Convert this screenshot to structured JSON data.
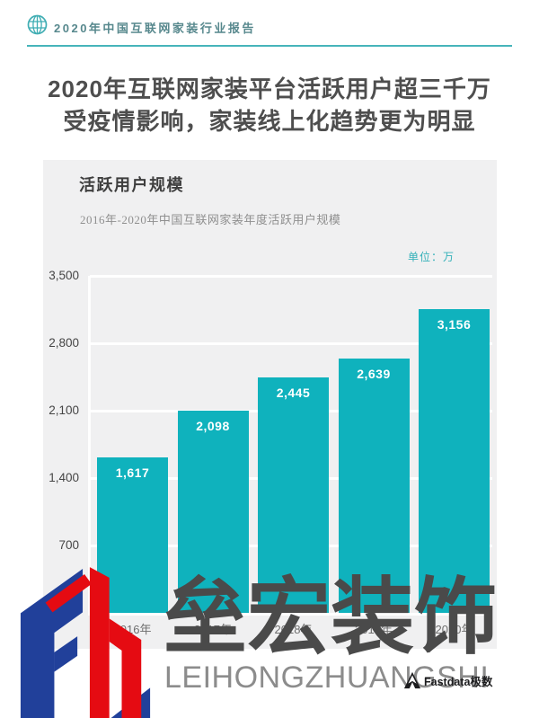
{
  "header": {
    "title": "2020年中国互联网家装行业报告"
  },
  "banner": {
    "line1": "2020年互联网家装平台活跃用户超三千万",
    "line2": "受疫情影响，家装线上化趋势更为明显"
  },
  "chart_card": {
    "title": "活跃用户规模",
    "subtitle": "2016年-2020年中国互联网家装年度活跃用户规模",
    "unit_label": "单位：万"
  },
  "chart_data": {
    "type": "bar",
    "title": "活跃用户规模",
    "subtitle": "2016年-2020年中国互联网家装年度活跃用户规模",
    "unit": "万",
    "categories": [
      "2016年",
      "2017年",
      "2018年",
      "2019年",
      "2020年"
    ],
    "values": [
      1617,
      2098,
      2445,
      2639,
      3156
    ],
    "value_labels": [
      "1,617",
      "2,098",
      "2,445",
      "2,639",
      "3,156"
    ],
    "y_axis": {
      "ticks": [
        700,
        1400,
        2100,
        2800,
        3500
      ],
      "tick_labels": [
        "700",
        "1,400",
        "2,100",
        "2,800",
        "3,500"
      ],
      "range": [
        0,
        3500
      ]
    },
    "grid": true,
    "legend": false,
    "bar_color": "#0fb2bd"
  },
  "watermark": {
    "cn": "垒宏装饰",
    "latin": "LEIHONGZHUANGSHI"
  },
  "source": {
    "brand": "Fastdata极数"
  },
  "colors": {
    "accent_teal": "#3fadb3",
    "bar_teal": "#0fb2bd",
    "card_bg": "#f0f0f1",
    "headline_gray": "#4e4e4e",
    "watermark_gray": "#4a4a4a",
    "logo_blue": "#21409a",
    "logo_red": "#e50b12"
  }
}
